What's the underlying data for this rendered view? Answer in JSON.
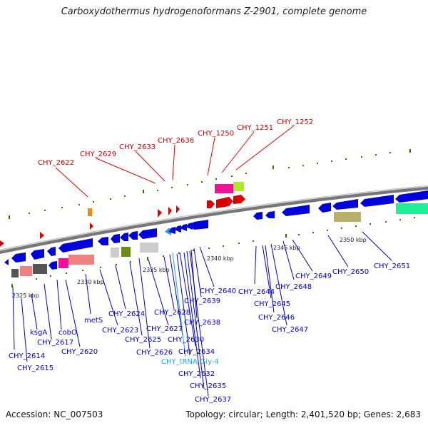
{
  "title": "Carboxydothermus hydrogenoformans Z-2901, complete genome",
  "accession": "Accession: NC_007503",
  "topology": "Topology: circular; Length: 2,401,520 bp; Genes: 2,683",
  "colors": {
    "gene": "#0000dd",
    "feature": "#ee0000",
    "trna": "#20a8e0",
    "backbone": "#888888",
    "tick": "#2a7a00"
  },
  "scale_labels": [
    "2325 kbp",
    "2330 kbp",
    "2335 kbp",
    "2340 kbp",
    "2345 kbp",
    "2350 kbp"
  ],
  "feature_labels": [
    "CHY_2622",
    "CHY_2629",
    "CHY_2633",
    "CHY_2636",
    "CHY_1250",
    "CHY_1251",
    "CHY_1252"
  ],
  "gene_labels": [
    "CHY_2614",
    "CHY_2615",
    "ksgA",
    "CHY_2617",
    "cobO",
    "CHY_2620",
    "metS",
    "CHY_2623",
    "CHY_2624",
    "CHY_2625",
    "CHY_2626",
    "CHY_2627",
    "CHY_2628",
    "CHY_2630",
    "CHY_2632",
    "CHY_2634",
    "CHY_2635",
    "CHY_2637",
    "CHY_2638",
    "CHY_2639",
    "CHY_2640",
    "CHY_2644",
    "CHY_2645",
    "CHY_2646",
    "CHY_2647",
    "CHY_2648",
    "CHY_2649",
    "CHY_2650",
    "CHY_2651"
  ],
  "trna_label": "CHY_tRNA-Gly-4"
}
